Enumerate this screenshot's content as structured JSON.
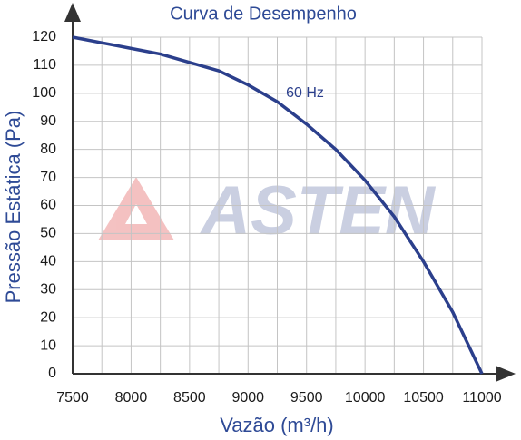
{
  "chart_data": {
    "type": "line",
    "title": "Curva de Desempenho",
    "x_label": "Vazão (m³/h)",
    "y_label": "Pressão Estática (Pa)",
    "watermark": "ASTEN",
    "x": [
      7500,
      7750,
      8000,
      8250,
      8500,
      8750,
      9000,
      9250,
      9500,
      9750,
      10000,
      10250,
      10500,
      10750,
      11000
    ],
    "series": [
      {
        "name": "60 Hz",
        "color": "#2b3f8c",
        "values": [
          120,
          118,
          116,
          114,
          111,
          108,
          103,
          97,
          89,
          80,
          69,
          56,
          40,
          22,
          0
        ]
      }
    ],
    "xlim": [
      7500,
      11000
    ],
    "xticks": [
      7500,
      8000,
      8500,
      9000,
      9500,
      10000,
      10500,
      11000
    ],
    "ylim": [
      0,
      120
    ],
    "yticks": [
      0,
      10,
      20,
      30,
      40,
      50,
      60,
      70,
      80,
      90,
      100,
      110,
      120
    ],
    "grid": true
  }
}
